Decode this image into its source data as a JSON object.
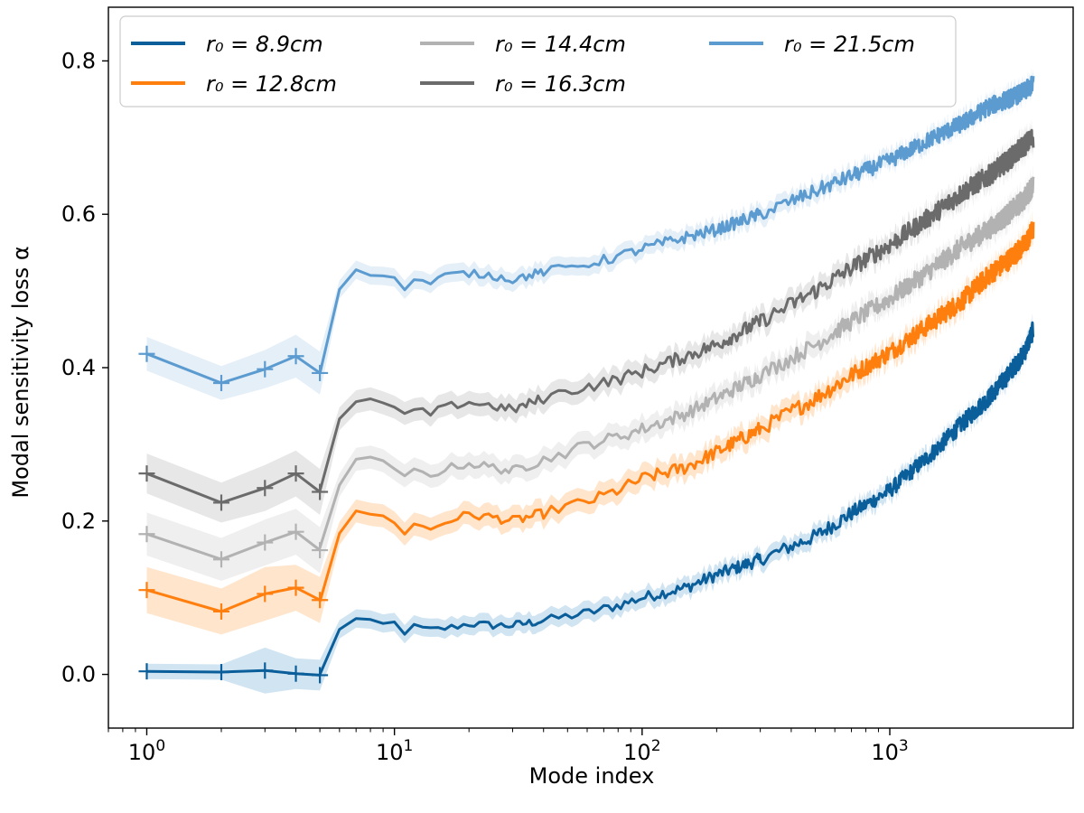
{
  "chart_data": {
    "type": "line",
    "title": "",
    "xlabel": "Mode index",
    "ylabel": "Modal sensitivity loss α",
    "xscale": "log",
    "xlim": [
      0.7,
      5500
    ],
    "ylim": [
      -0.07,
      0.87
    ],
    "x_ticks": [
      {
        "value": 1,
        "base": "10",
        "exp": "0"
      },
      {
        "value": 10,
        "base": "10",
        "exp": "1"
      },
      {
        "value": 100,
        "base": "10",
        "exp": "2"
      },
      {
        "value": 1000,
        "base": "10",
        "exp": "3"
      }
    ],
    "y_ticks": [
      {
        "value": 0.0,
        "label": "0.0"
      },
      {
        "value": 0.2,
        "label": "0.2"
      },
      {
        "value": 0.4,
        "label": "0.4"
      },
      {
        "value": 0.6,
        "label": "0.6"
      },
      {
        "value": 0.8,
        "label": "0.8"
      }
    ],
    "legend": {
      "location": "top-left",
      "columns": 3
    },
    "series": [
      {
        "name": "r_0 = 8.9cm",
        "legend_label": "r₀ = 8.9cm",
        "color": "#0a5e9a",
        "band_color": "#a9cde8",
        "low_modes": [
          1,
          2,
          3,
          4,
          5
        ],
        "low_values": [
          0.004,
          0.003,
          0.005,
          0.001,
          -0.001
        ],
        "low_band": [
          0.01,
          0.01,
          0.03,
          0.02,
          0.02
        ],
        "x": [
          5,
          6,
          7,
          8,
          9,
          10,
          11,
          12,
          14,
          16,
          18,
          20,
          25,
          30,
          40,
          50,
          60,
          80,
          100,
          150,
          200,
          300,
          500,
          700,
          1000,
          1500,
          2000,
          2500,
          3000,
          3500,
          3800
        ],
        "values": [
          -0.001,
          0.06,
          0.072,
          0.068,
          0.065,
          0.067,
          0.055,
          0.062,
          0.058,
          0.06,
          0.063,
          0.066,
          0.064,
          0.064,
          0.07,
          0.076,
          0.08,
          0.09,
          0.1,
          0.113,
          0.13,
          0.15,
          0.18,
          0.21,
          0.24,
          0.29,
          0.33,
          0.36,
          0.39,
          0.42,
          0.45
        ],
        "band": 0.012,
        "noise": 0.012
      },
      {
        "name": "r_0 = 12.8cm",
        "legend_label": "r₀ = 12.8cm",
        "color": "#ff7f0e",
        "band_color": "#ffcfa3",
        "low_modes": [
          1,
          2,
          3,
          4,
          5
        ],
        "low_values": [
          0.11,
          0.082,
          0.105,
          0.113,
          0.097
        ],
        "low_band": [
          0.03,
          0.03,
          0.035,
          0.03,
          0.03
        ],
        "x": [
          5,
          6,
          7,
          8,
          9,
          10,
          11,
          12,
          14,
          16,
          18,
          20,
          25,
          30,
          40,
          50,
          60,
          80,
          100,
          150,
          200,
          300,
          500,
          700,
          1000,
          1500,
          2000,
          2500,
          3000,
          3500,
          3800
        ],
        "values": [
          0.097,
          0.185,
          0.21,
          0.21,
          0.205,
          0.2,
          0.185,
          0.195,
          0.19,
          0.198,
          0.205,
          0.208,
          0.205,
          0.2,
          0.21,
          0.22,
          0.225,
          0.24,
          0.255,
          0.27,
          0.29,
          0.32,
          0.36,
          0.39,
          0.42,
          0.46,
          0.49,
          0.52,
          0.54,
          0.56,
          0.58
        ],
        "band": 0.015,
        "noise": 0.014
      },
      {
        "name": "r_0 = 14.4cm",
        "legend_label": "r₀ = 14.4cm",
        "color": "#b2b2b2",
        "band_color": "#e2e2e2",
        "low_modes": [
          1,
          2,
          3,
          4,
          5
        ],
        "low_values": [
          0.183,
          0.15,
          0.172,
          0.186,
          0.162
        ],
        "low_band": [
          0.028,
          0.028,
          0.03,
          0.03,
          0.03
        ],
        "x": [
          5,
          6,
          7,
          8,
          9,
          10,
          11,
          12,
          14,
          16,
          18,
          20,
          25,
          30,
          40,
          50,
          60,
          80,
          100,
          150,
          200,
          300,
          500,
          700,
          1000,
          1500,
          2000,
          2500,
          3000,
          3500,
          3800
        ],
        "values": [
          0.162,
          0.25,
          0.28,
          0.28,
          0.275,
          0.27,
          0.255,
          0.265,
          0.26,
          0.268,
          0.272,
          0.275,
          0.27,
          0.265,
          0.28,
          0.29,
          0.3,
          0.31,
          0.32,
          0.34,
          0.36,
          0.39,
          0.43,
          0.46,
          0.49,
          0.53,
          0.56,
          0.58,
          0.6,
          0.62,
          0.64
        ],
        "band": 0.015,
        "noise": 0.014
      },
      {
        "name": "r_0 = 16.3cm",
        "legend_label": "r₀ = 16.3cm",
        "color": "#6b6b6b",
        "band_color": "#d4d4d4",
        "low_modes": [
          1,
          2,
          3,
          4,
          5
        ],
        "low_values": [
          0.262,
          0.224,
          0.243,
          0.262,
          0.238
        ],
        "low_band": [
          0.026,
          0.026,
          0.03,
          0.03,
          0.03
        ],
        "x": [
          5,
          6,
          7,
          8,
          9,
          10,
          11,
          12,
          14,
          16,
          18,
          20,
          25,
          30,
          40,
          50,
          60,
          80,
          100,
          150,
          200,
          300,
          500,
          700,
          1000,
          1500,
          2000,
          2500,
          3000,
          3500,
          3800
        ],
        "values": [
          0.238,
          0.33,
          0.358,
          0.358,
          0.352,
          0.348,
          0.336,
          0.345,
          0.34,
          0.348,
          0.352,
          0.355,
          0.35,
          0.345,
          0.36,
          0.37,
          0.375,
          0.385,
          0.395,
          0.415,
          0.43,
          0.46,
          0.5,
          0.53,
          0.56,
          0.6,
          0.63,
          0.65,
          0.67,
          0.69,
          0.7
        ],
        "band": 0.015,
        "noise": 0.014
      },
      {
        "name": "r_0 = 21.5cm",
        "legend_label": "r₀ = 21.5cm",
        "color": "#5b9bd0",
        "band_color": "#cfe2f3",
        "low_modes": [
          1,
          2,
          3,
          4,
          5
        ],
        "low_values": [
          0.418,
          0.38,
          0.398,
          0.415,
          0.393
        ],
        "low_band": [
          0.022,
          0.022,
          0.025,
          0.028,
          0.028
        ],
        "x": [
          5,
          6,
          7,
          8,
          9,
          10,
          11,
          12,
          14,
          16,
          18,
          20,
          25,
          30,
          40,
          50,
          60,
          80,
          100,
          150,
          200,
          300,
          500,
          700,
          1000,
          1500,
          2000,
          2500,
          3000,
          3500,
          3800
        ],
        "values": [
          0.393,
          0.505,
          0.525,
          0.523,
          0.52,
          0.515,
          0.505,
          0.515,
          0.51,
          0.52,
          0.522,
          0.523,
          0.52,
          0.515,
          0.525,
          0.53,
          0.535,
          0.545,
          0.555,
          0.57,
          0.58,
          0.6,
          0.63,
          0.65,
          0.67,
          0.7,
          0.72,
          0.74,
          0.75,
          0.76,
          0.77
        ],
        "band": 0.012,
        "noise": 0.012
      }
    ]
  }
}
